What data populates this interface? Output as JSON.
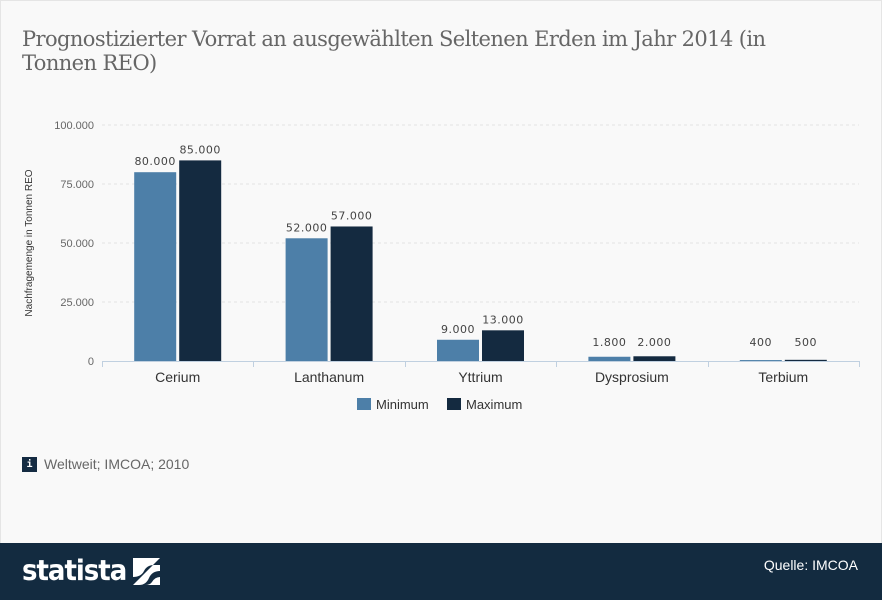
{
  "title": "Prognostizierter Vorrat an ausgewählten Seltenen Erden im Jahr 2014 (in Tonnen REO)",
  "note": "Weltweit; IMCOA; 2010",
  "note_icon": "info-icon",
  "footer": {
    "brand": "statista",
    "source": "Quelle: IMCOA"
  },
  "colors": {
    "minimum": "#4d7fa8",
    "maximum": "#142a40",
    "footer": "#132b40"
  },
  "chart_data": {
    "type": "bar",
    "title": "Prognostizierter Vorrat an ausgewählten Seltenen Erden im Jahr 2014 (in Tonnen REO)",
    "xlabel": "",
    "ylabel": "Nachfragemenge in Tonnen REO",
    "ylim": [
      0,
      100000
    ],
    "yticks": [
      0,
      25000,
      50000,
      75000,
      100000
    ],
    "ytick_labels": [
      "0",
      "25.000",
      "50.000",
      "75.000",
      "100.000"
    ],
    "grid": true,
    "legend": "bottom-center",
    "categories": [
      "Cerium",
      "Lanthanum",
      "Yttrium",
      "Dysprosium",
      "Terbium"
    ],
    "series": [
      {
        "name": "Minimum",
        "values": [
          80000,
          52000,
          9000,
          1800,
          400
        ],
        "labels": [
          "80.000",
          "52.000",
          "9.000",
          "1.800",
          "400"
        ]
      },
      {
        "name": "Maximum",
        "values": [
          85000,
          57000,
          13000,
          2000,
          500
        ],
        "labels": [
          "85.000",
          "57.000",
          "13.000",
          "2.000",
          "500"
        ]
      }
    ]
  }
}
